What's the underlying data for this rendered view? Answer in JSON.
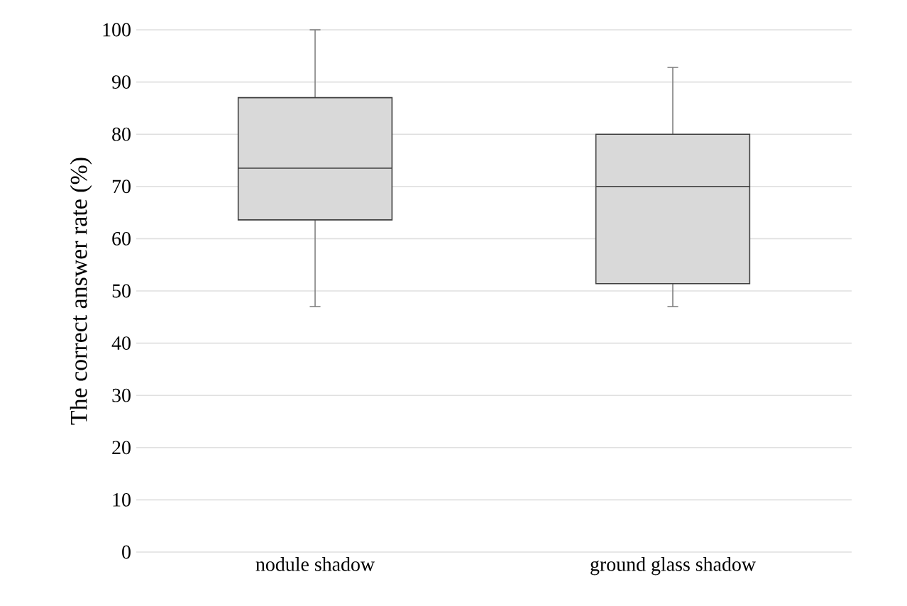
{
  "chart_data": {
    "type": "box",
    "ylabel": "The correct answer rate (%)",
    "categories": [
      "nodule shadow",
      "ground glass shadow"
    ],
    "boxes": [
      {
        "low": 47,
        "q1": 63.6,
        "median": 73.5,
        "q3": 87,
        "high": 100
      },
      {
        "low": 47,
        "q1": 51.4,
        "median": 70,
        "q3": 80,
        "high": 92.8
      }
    ],
    "color": "#d9d9d9",
    "ylim": [
      0,
      100
    ],
    "yticks": [
      0,
      10,
      20,
      30,
      40,
      50,
      60,
      70,
      80,
      90,
      100
    ],
    "grid": "y"
  }
}
